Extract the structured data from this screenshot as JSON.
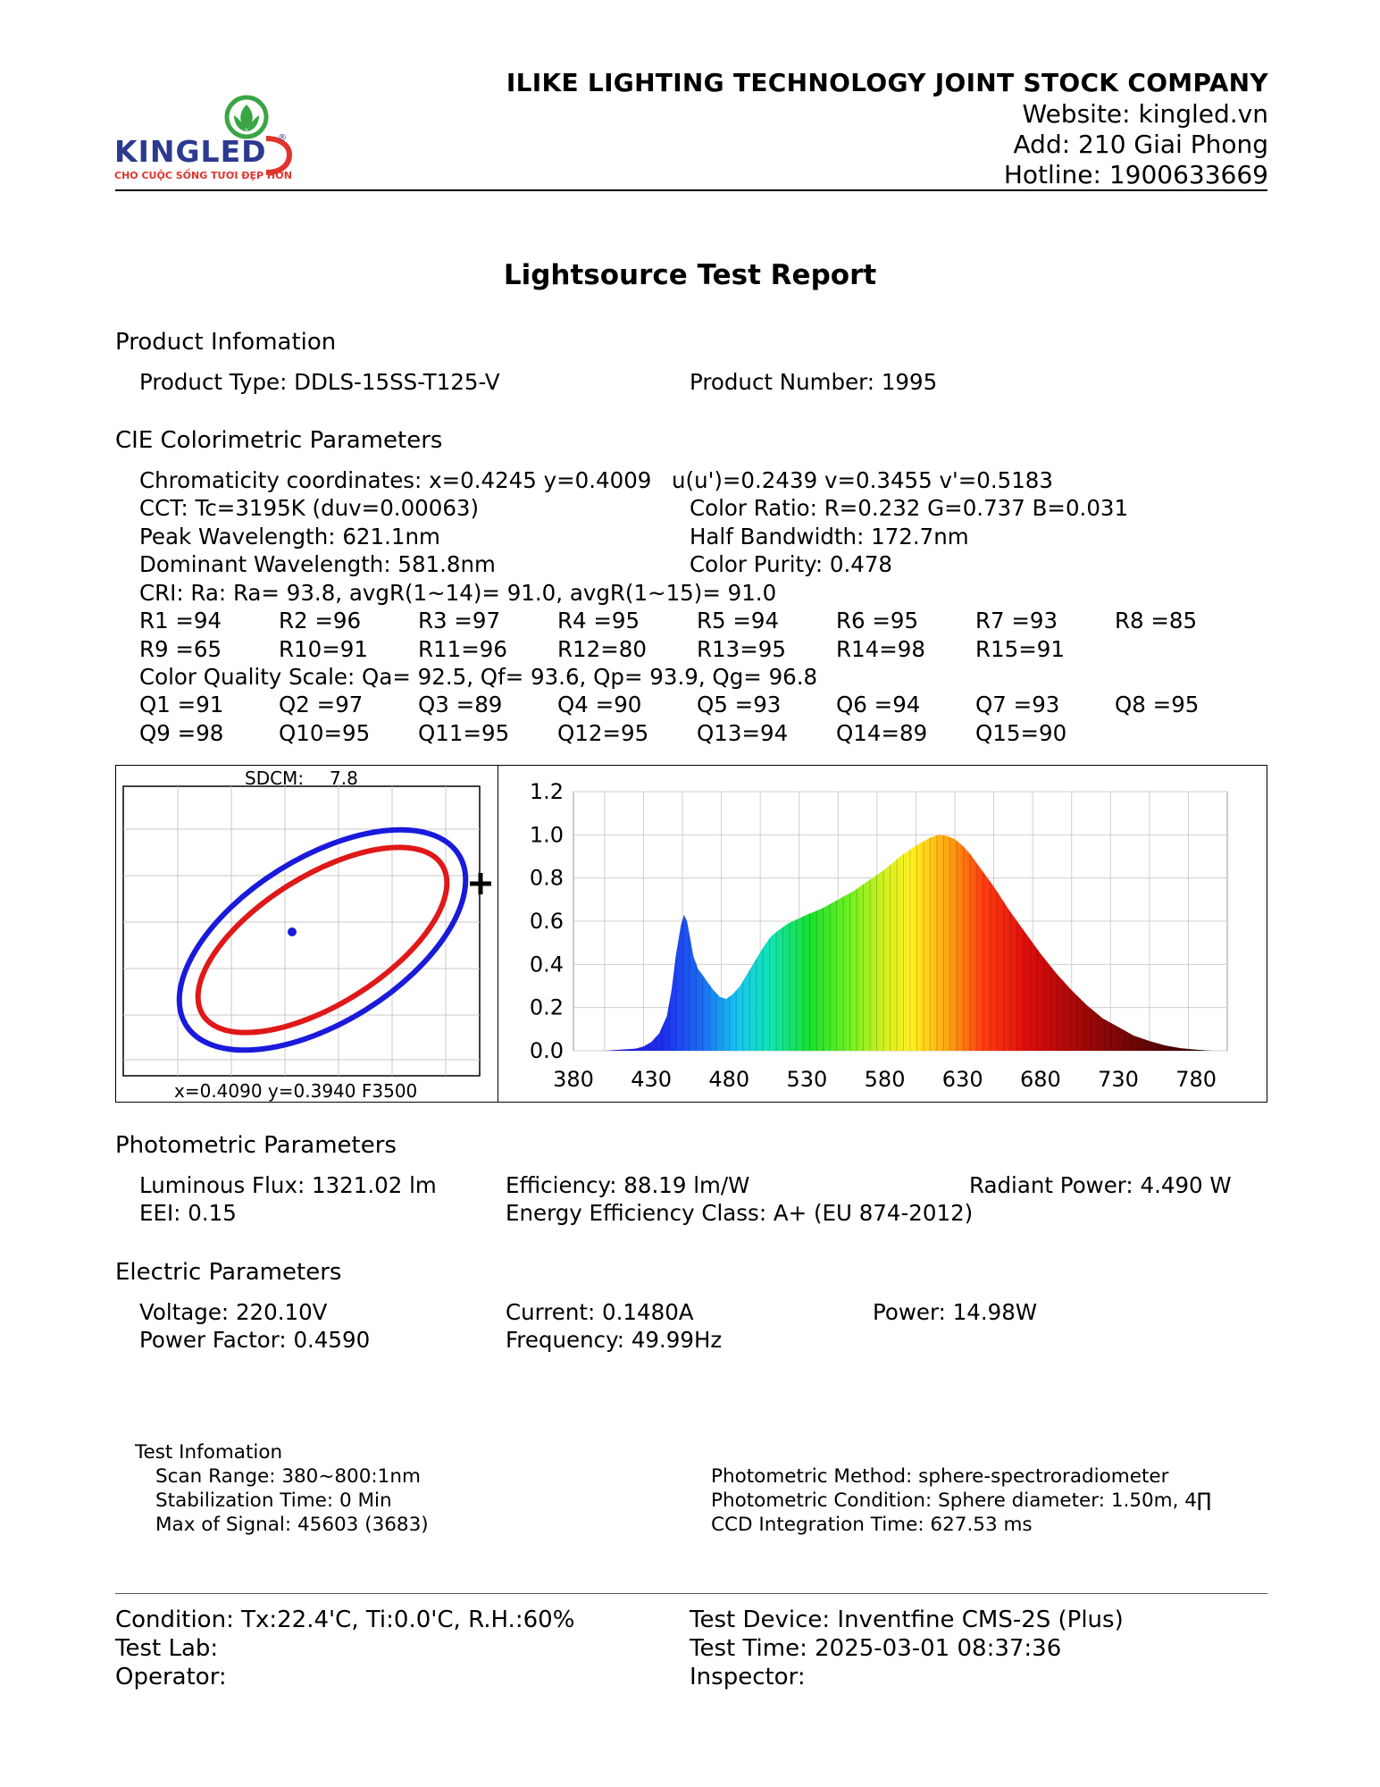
{
  "header": {
    "company": "ILIKE LIGHTING TECHNOLOGY JOINT STOCK COMPANY",
    "website": "Website: kingled.vn",
    "address": "Add: 210 Giai Phong",
    "hotline": "Hotline: 1900633669",
    "logo_text": "KINGLED",
    "logo_tagline": "CHO CUỘC SỐNG TƯƠI ĐẸP HƠN",
    "colors": {
      "logo_blue": "#2b3a8f",
      "logo_red": "#e0342c",
      "logo_green": "#3aa545"
    }
  },
  "title": "Lightsource Test Report",
  "product": {
    "heading": "Product Infomation",
    "type": "Product Type: DDLS-15SS-T125-V",
    "number": "Product Number: 1995"
  },
  "cie": {
    "heading": "CIE Colorimetric Parameters",
    "chromaticity": "Chromaticity coordinates: x=0.4245 y=0.4009",
    "uv": "u(u')=0.2439 v=0.3455 v'=0.5183",
    "cct": "CCT: Tc=3195K (duv=0.00063)",
    "color_ratio": "Color Ratio: R=0.232  G=0.737  B=0.031",
    "peak": "Peak Wavelength: 621.1nm",
    "half_bandwidth": "Half Bandwidth: 172.7nm",
    "dominant": "Dominant Wavelength: 581.8nm",
    "purity": "Color Purity: 0.478",
    "cri": "CRI: Ra: Ra= 93.8, avgR(1~14)= 91.0, avgR(1~15)= 91.0",
    "r_values": [
      [
        "R1 =94",
        "R2 =96",
        "R3 =97",
        "R4 =95",
        "R5 =94",
        "R6 =95",
        "R7 =93",
        "R8 =85"
      ],
      [
        "R9 =65",
        "R10=91",
        "R11=96",
        "R12=80",
        "R13=95",
        "R14=98",
        "R15=91"
      ]
    ],
    "cqs": "Color Quality Scale: Qa= 92.5, Qf= 93.6, Qp= 93.9, Qg= 96.8",
    "q_values": [
      [
        "Q1 =91",
        "Q2 =97",
        "Q3 =89",
        "Q4 =90",
        "Q5 =93",
        "Q6 =94",
        "Q7 =93",
        "Q8 =95"
      ],
      [
        "Q9 =98",
        "Q10=95",
        "Q11=95",
        "Q12=95",
        "Q13=94",
        "Q14=89",
        "Q15=90"
      ]
    ]
  },
  "sdcm": {
    "label": "SDCM:",
    "value": "7.8",
    "footer": "x=0.4090 y=0.3940 F3500",
    "colors": {
      "outer_ellipse": "#1a1adc",
      "inner_ellipse": "#e01818",
      "center_dot": "#1a1adc"
    }
  },
  "chart_data": {
    "type": "area",
    "title": "",
    "xlabel": "",
    "ylabel": "",
    "x_ticks": [
      "380",
      "430",
      "480",
      "530",
      "580",
      "630",
      "680",
      "730",
      "780"
    ],
    "y_ticks": [
      "0.0",
      "0.2",
      "0.4",
      "0.6",
      "0.8",
      "1.0",
      "1.2"
    ],
    "xlim": [
      380,
      800
    ],
    "ylim": [
      0,
      1.2
    ],
    "grid": true,
    "series": [
      {
        "x": [
          380,
          400,
          410,
          420,
          425,
          430,
          435,
          440,
          443,
          446,
          449,
          451,
          453,
          455,
          457,
          460,
          463,
          466,
          470,
          474,
          478,
          482,
          487,
          492,
          497,
          502,
          507,
          512,
          518,
          524,
          530,
          540,
          550,
          560,
          570,
          580,
          590,
          600,
          610,
          615,
          620,
          625,
          630,
          635,
          640,
          645,
          650,
          660,
          670,
          680,
          690,
          700,
          710,
          720,
          730,
          740,
          750,
          760,
          770,
          780,
          790
        ],
        "y": [
          0.0,
          0.0,
          0.005,
          0.01,
          0.02,
          0.04,
          0.08,
          0.16,
          0.28,
          0.45,
          0.58,
          0.63,
          0.6,
          0.52,
          0.44,
          0.38,
          0.35,
          0.32,
          0.28,
          0.25,
          0.24,
          0.26,
          0.3,
          0.36,
          0.42,
          0.48,
          0.53,
          0.56,
          0.59,
          0.61,
          0.63,
          0.66,
          0.7,
          0.74,
          0.79,
          0.84,
          0.9,
          0.95,
          0.99,
          1.0,
          0.995,
          0.98,
          0.95,
          0.91,
          0.86,
          0.81,
          0.76,
          0.65,
          0.55,
          0.45,
          0.36,
          0.28,
          0.21,
          0.15,
          0.11,
          0.07,
          0.045,
          0.025,
          0.012,
          0.005,
          0.0
        ]
      }
    ]
  },
  "photometric": {
    "heading": "Photometric Parameters",
    "flux": "Luminous Flux: 1321.02 lm",
    "efficiency": "Efficiency: 88.19 lm/W",
    "radiant": "Radiant Power: 4.490 W",
    "eei": "EEI:  0.15",
    "class": "Energy Efficiency Class: A+ (EU 874-2012)"
  },
  "electric": {
    "heading": "Electric Parameters",
    "voltage": "Voltage: 220.10V",
    "current": "Current: 0.1480A",
    "power": "Power: 14.98W",
    "pf": "Power Factor: 0.4590",
    "frequency": "Frequency: 49.99Hz"
  },
  "test_info": {
    "heading": "Test Infomation",
    "scan": "Scan Range: 380~800:1nm",
    "stabilization": "Stabilization Time: 0 Min",
    "signal": "Max of Signal: 45603 (3683)",
    "method": "Photometric Method: sphere-spectroradiometer",
    "condition": "Photometric Condition: Sphere diameter: 1.50m, 4∏",
    "ccd": "CCD Integration Time: 627.53 ms"
  },
  "footer": {
    "condition": "Condition: Tx:22.4'C, Ti:0.0'C, R.H.:60%",
    "device": "Test Device: Inventfine CMS-2S (Plus)",
    "lab": "Test Lab:",
    "time": "Test Time: 2025-03-01 08:37:36",
    "operator": "Operator:",
    "inspector": "Inspector:"
  }
}
